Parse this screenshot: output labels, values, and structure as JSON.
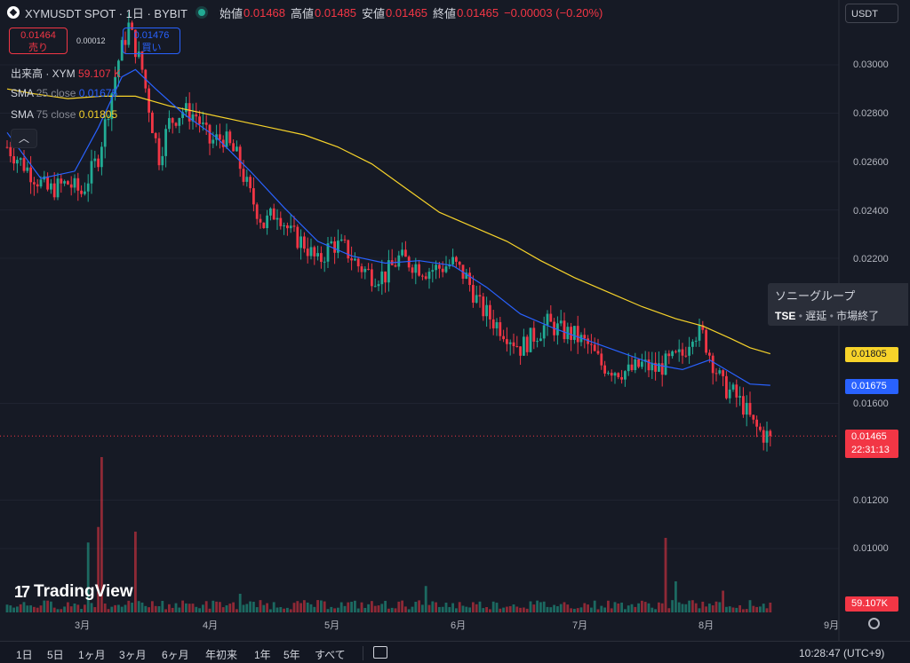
{
  "header": {
    "symbol": "XYMUSDT SPOT · 1日 · BYBIT",
    "open_label": "始値",
    "open": "0.01468",
    "high_label": "高値",
    "high": "0.01485",
    "low_label": "安値",
    "low": "0.01465",
    "close_label": "終値",
    "close": "0.01465",
    "change": "−0.00003 (−0.20%)"
  },
  "trade": {
    "sell_price": "0.01464",
    "sell_label": "売り",
    "spread": "0.00012",
    "buy_price": "0.01476",
    "buy_label": "買い"
  },
  "legend": {
    "volume_label": "出来高 · XYM",
    "volume_value": "59.107 K",
    "sma25_label": "SMA",
    "sma25_param": "25 close",
    "sma25_value": "0.01675",
    "sma75_label": "SMA",
    "sma75_param": "75 close",
    "sma75_value": "0.01805"
  },
  "currency": "USDT",
  "price_axis": [
    {
      "v": 0.03,
      "label": "0.03000"
    },
    {
      "v": 0.028,
      "label": "0.02800"
    },
    {
      "v": 0.026,
      "label": "0.02600"
    },
    {
      "v": 0.024,
      "label": "0.02400"
    },
    {
      "v": 0.022,
      "label": "0.02200"
    },
    {
      "v": 0.016,
      "label": "0.01600"
    },
    {
      "v": 0.012,
      "label": "0.01200"
    },
    {
      "v": 0.01,
      "label": "0.01000"
    }
  ],
  "price_labels": {
    "sma75": "0.01805",
    "sma25": "0.01675",
    "last": "0.01465",
    "countdown": "22:31:13",
    "volume": "59.107K"
  },
  "time_axis": [
    "3月",
    "4月",
    "5月",
    "6月",
    "7月",
    "8月",
    "9月"
  ],
  "tooltip": {
    "name": "ソニーグループ",
    "exchange": "TSE",
    "status1": "遅延",
    "status2": "市場終了"
  },
  "brand": "TradingView",
  "ranges": [
    "1日",
    "5日",
    "1ヶ月",
    "3ヶ月",
    "6ヶ月",
    "年初来",
    "1年",
    "5年",
    "すべて"
  ],
  "clock": "10:28:47 (UTC+9)",
  "colors": {
    "up": "#22ab94",
    "down": "#f23645",
    "sma25": "#2962ff",
    "sma75": "#f7d32a",
    "bg": "#161a25"
  },
  "chart_data": {
    "type": "candlestick",
    "title": "XYMUSDT SPOT · 1日 · BYBIT",
    "ylim": [
      0.0086,
      0.0325
    ],
    "x_months": [
      "3月",
      "4月",
      "5月",
      "6月",
      "7月",
      "8月",
      "9月"
    ],
    "close_path": [
      [
        0,
        0.0266
      ],
      [
        6,
        0.0257
      ],
      [
        12,
        0.0248
      ],
      [
        18,
        0.0251
      ],
      [
        22,
        0.0247
      ],
      [
        27,
        0.0262
      ],
      [
        30,
        0.0282
      ],
      [
        33,
        0.0302
      ],
      [
        36,
        0.0316
      ],
      [
        40,
        0.0298
      ],
      [
        43,
        0.0275
      ],
      [
        45,
        0.0262
      ],
      [
        48,
        0.0276
      ],
      [
        52,
        0.0281
      ],
      [
        56,
        0.0279
      ],
      [
        60,
        0.0268
      ],
      [
        64,
        0.027
      ],
      [
        68,
        0.0262
      ],
      [
        72,
        0.0246
      ],
      [
        76,
        0.0234
      ],
      [
        80,
        0.024
      ],
      [
        84,
        0.023
      ],
      [
        88,
        0.0226
      ],
      [
        92,
        0.0218
      ],
      [
        96,
        0.0226
      ],
      [
        100,
        0.0224
      ],
      [
        104,
        0.0217
      ],
      [
        108,
        0.0213
      ],
      [
        112,
        0.0213
      ],
      [
        116,
        0.022
      ],
      [
        120,
        0.0218
      ],
      [
        124,
        0.0215
      ],
      [
        128,
        0.0216
      ],
      [
        132,
        0.0218
      ],
      [
        136,
        0.0212
      ],
      [
        140,
        0.02
      ],
      [
        144,
        0.0194
      ],
      [
        148,
        0.0189
      ],
      [
        152,
        0.0183
      ],
      [
        156,
        0.0188
      ],
      [
        160,
        0.0193
      ],
      [
        164,
        0.019
      ],
      [
        168,
        0.0188
      ],
      [
        172,
        0.0184
      ],
      [
        176,
        0.0176
      ],
      [
        180,
        0.0174
      ],
      [
        184,
        0.0173
      ],
      [
        188,
        0.0176
      ],
      [
        192,
        0.0174
      ],
      [
        196,
        0.0177
      ],
      [
        200,
        0.018
      ],
      [
        203,
        0.019
      ],
      [
        206,
        0.0188
      ],
      [
        209,
        0.0177
      ],
      [
        212,
        0.0167
      ],
      [
        215,
        0.0164
      ],
      [
        218,
        0.0159
      ],
      [
        221,
        0.0151
      ],
      [
        224,
        0.0147
      ],
      [
        226,
        0.01465
      ]
    ],
    "sma25_path": [
      [
        0,
        0.0272
      ],
      [
        10,
        0.0253
      ],
      [
        20,
        0.0256
      ],
      [
        27,
        0.0274
      ],
      [
        34,
        0.0295
      ],
      [
        38,
        0.0298
      ],
      [
        44,
        0.029
      ],
      [
        52,
        0.028
      ],
      [
        62,
        0.027
      ],
      [
        72,
        0.0256
      ],
      [
        82,
        0.0241
      ],
      [
        92,
        0.0227
      ],
      [
        102,
        0.0221
      ],
      [
        112,
        0.0218
      ],
      [
        122,
        0.0219
      ],
      [
        132,
        0.0217
      ],
      [
        142,
        0.0208
      ],
      [
        152,
        0.0197
      ],
      [
        162,
        0.0191
      ],
      [
        172,
        0.0186
      ],
      [
        182,
        0.0181
      ],
      [
        192,
        0.0176
      ],
      [
        200,
        0.0174
      ],
      [
        208,
        0.0178
      ],
      [
        214,
        0.0173
      ],
      [
        220,
        0.0168
      ],
      [
        226,
        0.01675
      ]
    ],
    "sma75_path": [
      [
        0,
        0.029
      ],
      [
        8,
        0.0288
      ],
      [
        18,
        0.0286
      ],
      [
        28,
        0.0287
      ],
      [
        38,
        0.0287
      ],
      [
        48,
        0.0283
      ],
      [
        58,
        0.028
      ],
      [
        68,
        0.0277
      ],
      [
        78,
        0.0274
      ],
      [
        88,
        0.0271
      ],
      [
        98,
        0.0266
      ],
      [
        108,
        0.0259
      ],
      [
        118,
        0.0249
      ],
      [
        128,
        0.0239
      ],
      [
        138,
        0.0233
      ],
      [
        148,
        0.0227
      ],
      [
        158,
        0.0219
      ],
      [
        168,
        0.0212
      ],
      [
        178,
        0.0206
      ],
      [
        188,
        0.02
      ],
      [
        198,
        0.0195
      ],
      [
        206,
        0.0192
      ],
      [
        214,
        0.0187
      ],
      [
        220,
        0.0183
      ],
      [
        226,
        0.01805
      ]
    ],
    "volume_spikes": [
      [
        27,
        0.55
      ],
      [
        28,
        1.0
      ],
      [
        24,
        0.45
      ],
      [
        38,
        0.52
      ],
      [
        69,
        0.12
      ],
      [
        124,
        0.17
      ],
      [
        195,
        0.48
      ],
      [
        198,
        0.2
      ],
      [
        212,
        0.14
      ]
    ],
    "last_price": 0.01465,
    "last_volume": "59.107K"
  }
}
